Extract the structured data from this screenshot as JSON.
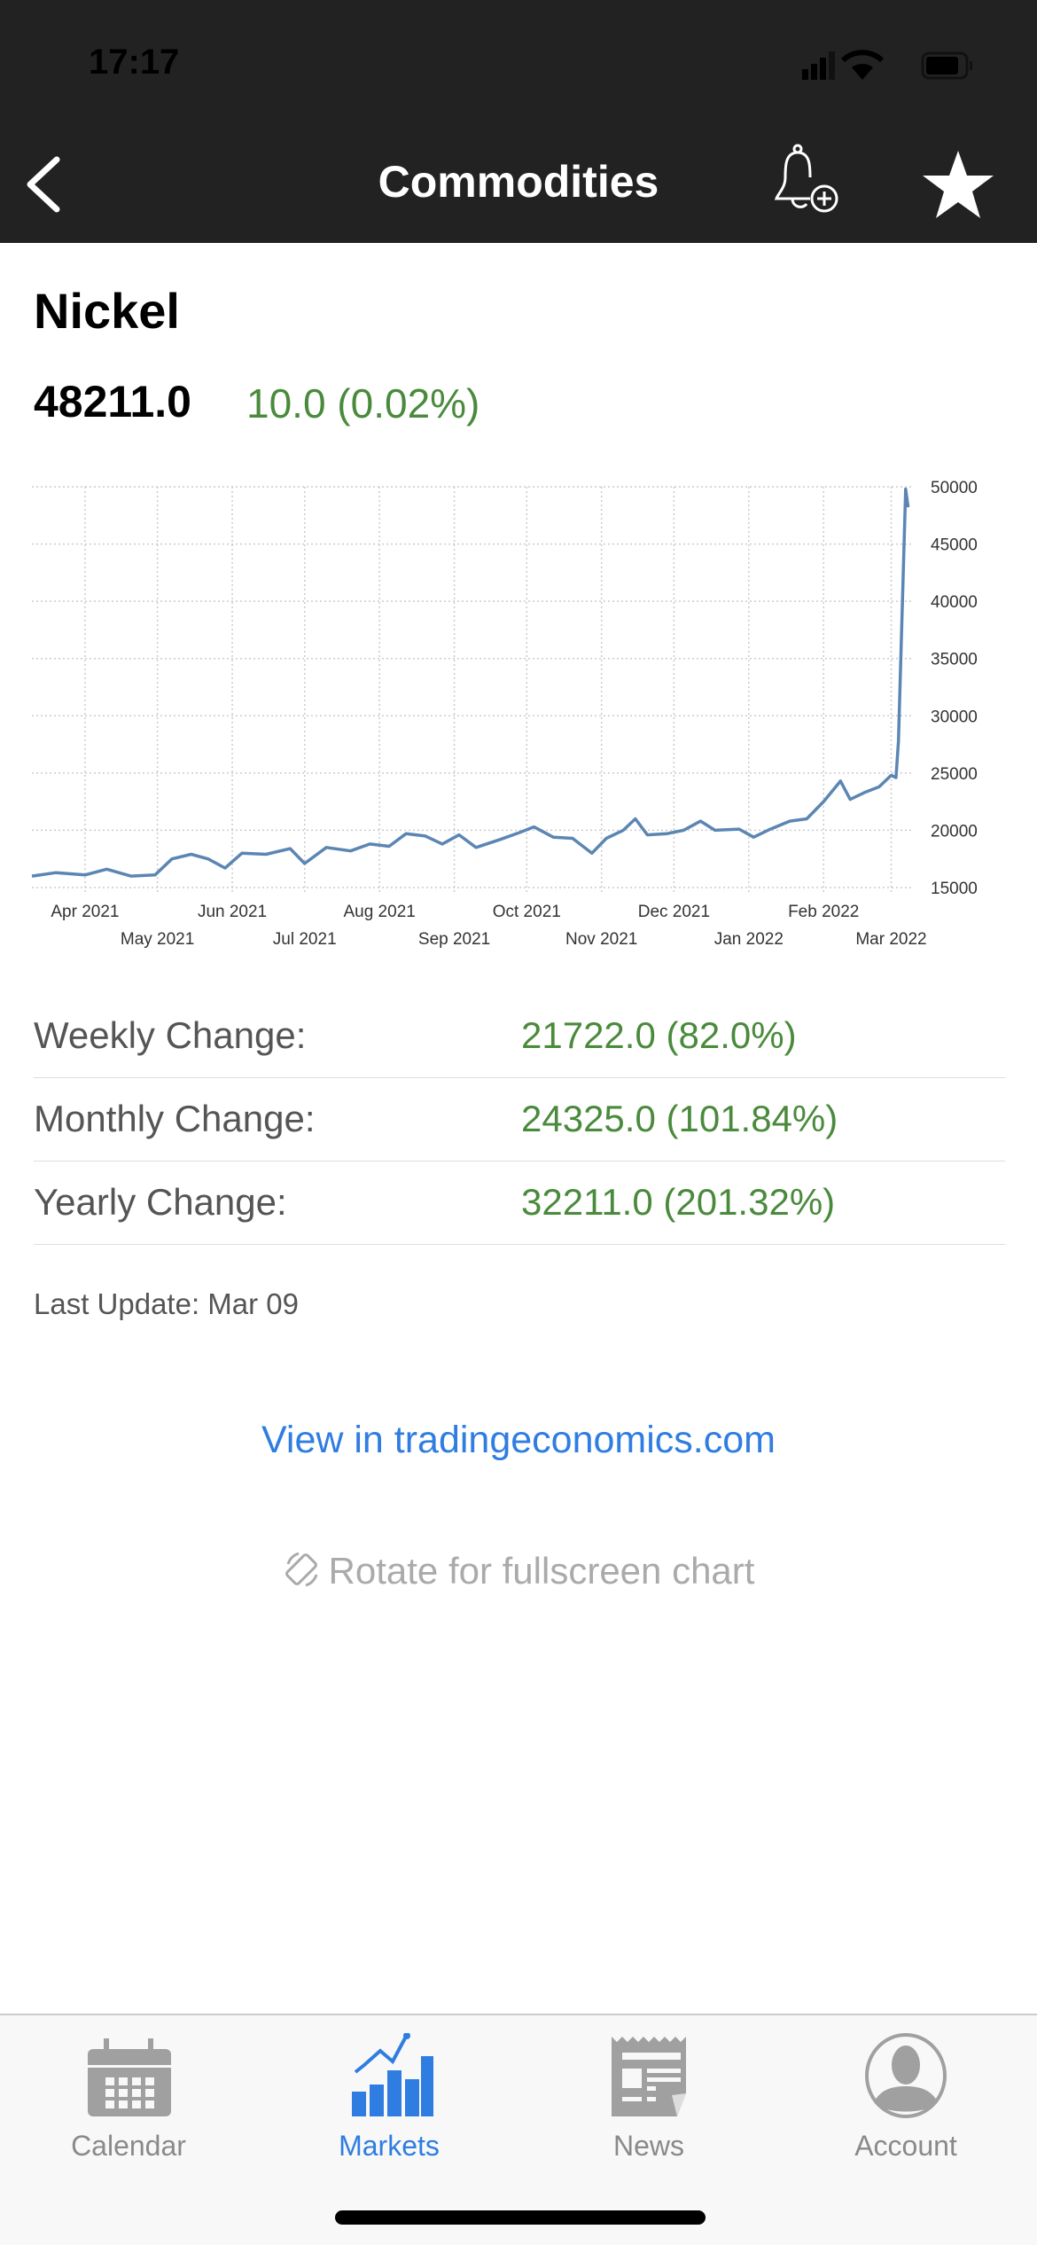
{
  "status_bar": {
    "time": "17:17"
  },
  "header": {
    "title": "Commodities",
    "back_icon": "chevron-left-icon",
    "alert_icon": "bell-plus-icon",
    "favorite_icon": "star-icon"
  },
  "instrument": {
    "name": "Nickel",
    "price": "48211.0",
    "change": "10.0 (0.02%)"
  },
  "colors": {
    "positive": "#4a8a3c",
    "accent": "#2f7de1",
    "line": "#5b86b3",
    "header_bg": "#222222"
  },
  "chart_data": {
    "type": "line",
    "title": "",
    "xlabel": "",
    "ylabel": "",
    "ylim": [
      15000,
      50000
    ],
    "yticks": [
      "15000",
      "20000",
      "25000",
      "30000",
      "35000",
      "40000",
      "45000",
      "50000"
    ],
    "xlim": [
      "2021-03-10",
      "2022-03-10"
    ],
    "xticks": [
      {
        "date": "2021-04-01",
        "label": "Apr 2021"
      },
      {
        "date": "2021-05-01",
        "label": "May 2021"
      },
      {
        "date": "2021-06-01",
        "label": "Jun 2021"
      },
      {
        "date": "2021-07-01",
        "label": "Jul 2021"
      },
      {
        "date": "2021-08-01",
        "label": "Aug 2021"
      },
      {
        "date": "2021-09-01",
        "label": "Sep 2021"
      },
      {
        "date": "2021-10-01",
        "label": "Oct 2021"
      },
      {
        "date": "2021-11-01",
        "label": "Nov 2021"
      },
      {
        "date": "2021-12-01",
        "label": "Dec 2021"
      },
      {
        "date": "2022-01-01",
        "label": "Jan 2022"
      },
      {
        "date": "2022-02-01",
        "label": "Feb 2022"
      },
      {
        "date": "2022-03-01",
        "label": "Mar 2022"
      }
    ],
    "grid": true,
    "y_axis_position": "right",
    "points": [
      [
        "2021-03-10",
        16000
      ],
      [
        "2021-03-20",
        16300
      ],
      [
        "2021-04-01",
        16100
      ],
      [
        "2021-04-10",
        16600
      ],
      [
        "2021-04-20",
        16000
      ],
      [
        "2021-04-30",
        16100
      ],
      [
        "2021-05-07",
        17500
      ],
      [
        "2021-05-15",
        17900
      ],
      [
        "2021-05-22",
        17500
      ],
      [
        "2021-05-29",
        16700
      ],
      [
        "2021-06-05",
        18000
      ],
      [
        "2021-06-15",
        17900
      ],
      [
        "2021-06-25",
        18400
      ],
      [
        "2021-07-01",
        17100
      ],
      [
        "2021-07-10",
        18500
      ],
      [
        "2021-07-20",
        18200
      ],
      [
        "2021-07-28",
        18800
      ],
      [
        "2021-08-05",
        18600
      ],
      [
        "2021-08-12",
        19700
      ],
      [
        "2021-08-20",
        19500
      ],
      [
        "2021-08-27",
        18800
      ],
      [
        "2021-09-03",
        19600
      ],
      [
        "2021-09-10",
        18500
      ],
      [
        "2021-09-20",
        19200
      ],
      [
        "2021-09-28",
        19800
      ],
      [
        "2021-10-04",
        20300
      ],
      [
        "2021-10-12",
        19400
      ],
      [
        "2021-10-20",
        19300
      ],
      [
        "2021-10-28",
        18000
      ],
      [
        "2021-11-03",
        19300
      ],
      [
        "2021-11-10",
        20000
      ],
      [
        "2021-11-15",
        21000
      ],
      [
        "2021-11-20",
        19600
      ],
      [
        "2021-11-28",
        19700
      ],
      [
        "2021-12-05",
        20000
      ],
      [
        "2021-12-12",
        20800
      ],
      [
        "2021-12-18",
        20000
      ],
      [
        "2021-12-28",
        20100
      ],
      [
        "2022-01-03",
        19400
      ],
      [
        "2022-01-10",
        20100
      ],
      [
        "2022-01-18",
        20800
      ],
      [
        "2022-01-25",
        21000
      ],
      [
        "2022-02-01",
        22500
      ],
      [
        "2022-02-08",
        24300
      ],
      [
        "2022-02-12",
        22700
      ],
      [
        "2022-02-18",
        23300
      ],
      [
        "2022-02-24",
        23800
      ],
      [
        "2022-03-01",
        24800
      ],
      [
        "2022-03-03",
        24600
      ],
      [
        "2022-03-04",
        27800
      ],
      [
        "2022-03-07",
        49800
      ],
      [
        "2022-03-08",
        48211
      ]
    ]
  },
  "stats": [
    {
      "label": "Weekly Change:",
      "value": "21722.0 (82.0%)"
    },
    {
      "label": "Monthly Change:",
      "value": "24325.0 (101.84%)"
    },
    {
      "label": "Yearly Change:",
      "value": "32211.0 (201.32%)"
    }
  ],
  "last_update": "Last Update: Mar 09",
  "link": "View in tradingeconomics.com",
  "rotate_hint": "Rotate for fullscreen chart",
  "tabs": [
    {
      "label": "Calendar",
      "icon": "calendar-icon",
      "active": false
    },
    {
      "label": "Markets",
      "icon": "markets-chart-icon",
      "active": true
    },
    {
      "label": "News",
      "icon": "newspaper-icon",
      "active": false
    },
    {
      "label": "Account",
      "icon": "account-icon",
      "active": false
    }
  ]
}
